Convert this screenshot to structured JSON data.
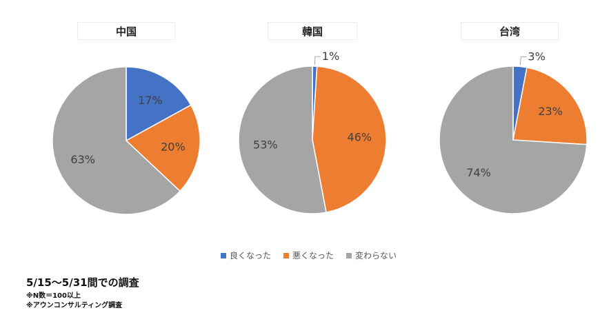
{
  "colors": {
    "good": "#4472C4",
    "bad": "#ED7D31",
    "same": "#A5A5A5"
  },
  "legend": [
    "良くなった",
    "悪くなった",
    "変わらない"
  ],
  "footer": {
    "title": "5/15～5/31間での調査",
    "notes": [
      "※N数＝100以上",
      "※アウンコンサルティング調査"
    ]
  },
  "chart_data": [
    {
      "type": "pie",
      "title": "中国",
      "categories": [
        "良くなった",
        "悪くなった",
        "変わらない"
      ],
      "values": [
        17,
        20,
        63
      ],
      "labels": [
        "17%",
        "20%",
        "63%"
      ]
    },
    {
      "type": "pie",
      "title": "韓国",
      "categories": [
        "良くなった",
        "悪くなった",
        "変わらない"
      ],
      "values": [
        1,
        46,
        53
      ],
      "labels": [
        "1%",
        "46%",
        "53%"
      ]
    },
    {
      "type": "pie",
      "title": "台湾",
      "categories": [
        "良くなった",
        "悪くなった",
        "変わらない"
      ],
      "values": [
        3,
        23,
        74
      ],
      "labels": [
        "3%",
        "23%",
        "74%"
      ]
    }
  ]
}
